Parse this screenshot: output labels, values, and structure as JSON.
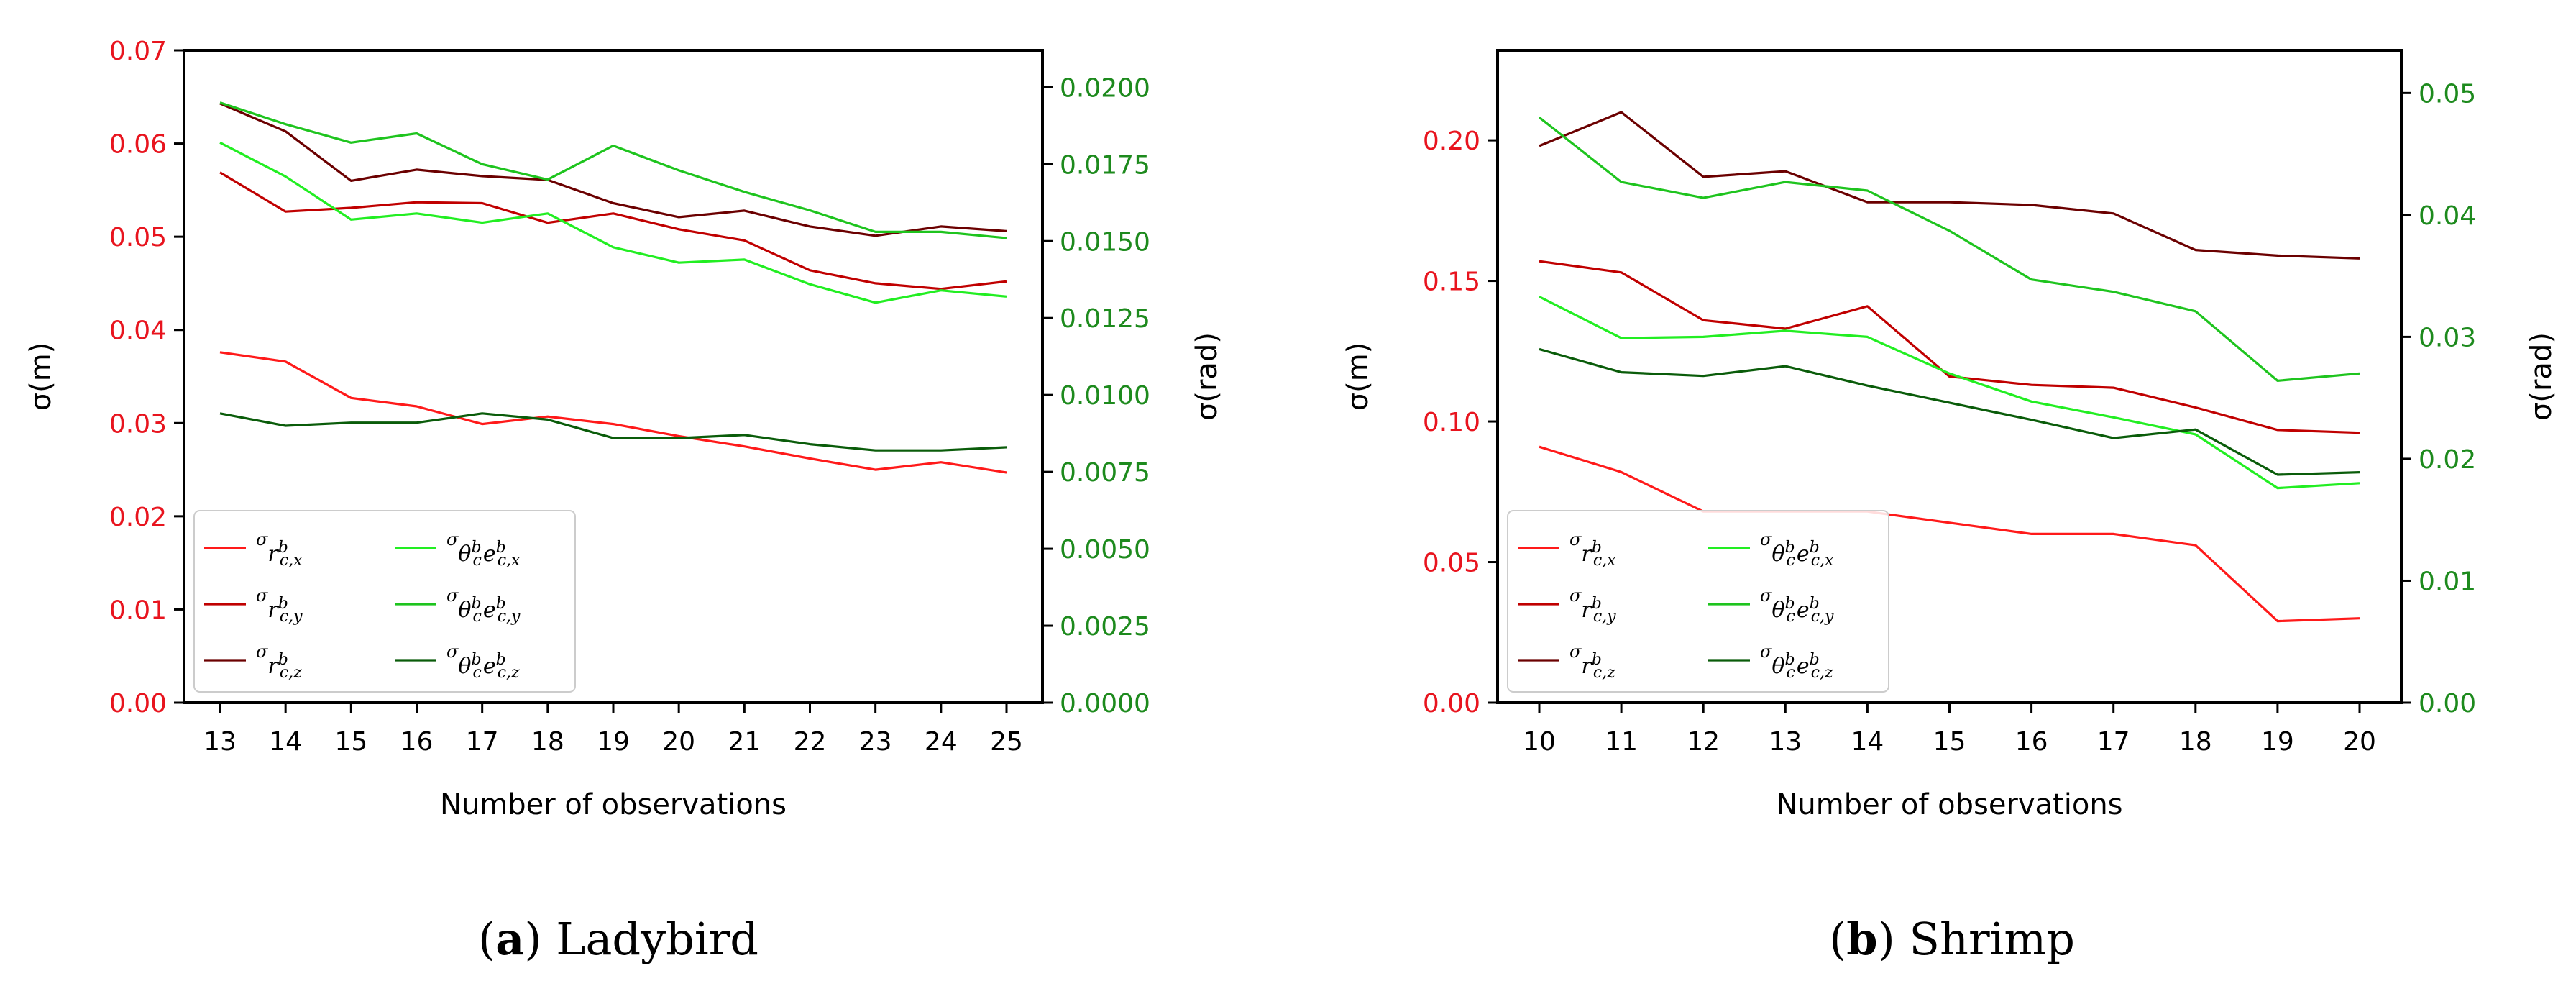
{
  "figure": {
    "colors": {
      "left_axis": "#e8141e",
      "right_axis": "#1d8a1d"
    },
    "subfigures": [
      {
        "label": "a",
        "name": "Ladybird"
      },
      {
        "label": "b",
        "name": "Shrimp"
      }
    ]
  },
  "chart_data": [
    {
      "type": "line",
      "panel": "(a) Ladybird",
      "xlabel": "Number of observations",
      "ylabel_left": "σ(m)",
      "ylabel_right": "σ(rad)",
      "x": [
        13,
        14,
        15,
        16,
        17,
        18,
        19,
        20,
        21,
        22,
        23,
        24,
        25
      ],
      "x_ticks": [
        "13",
        "14",
        "15",
        "16",
        "17",
        "18",
        "19",
        "20",
        "21",
        "22",
        "23",
        "24",
        "25"
      ],
      "ylim_left": [
        0,
        0.07
      ],
      "yticks_left": [
        "0.00",
        "0.01",
        "0.02",
        "0.03",
        "0.04",
        "0.05",
        "0.06",
        "0.07"
      ],
      "ylim_right": [
        0,
        0.0212
      ],
      "yticks_right": [
        "0.0000",
        "0.0025",
        "0.0050",
        "0.0075",
        "0.0100",
        "0.0125",
        "0.0150",
        "0.0175",
        "0.0200"
      ],
      "legend_placement": "bottom-left",
      "series": [
        {
          "name": "σ r^b_{c,x}",
          "axis": "left",
          "color": "#ff1a1a",
          "legend": {
            "base": "σ",
            "sub": "r",
            "sup": "b",
            "subsub": "c,x"
          },
          "values": [
            0.0376,
            0.0366,
            0.0327,
            0.0318,
            0.0299,
            0.0307,
            0.0299,
            0.0286,
            0.0275,
            0.0262,
            0.025,
            0.0258,
            0.0247
          ]
        },
        {
          "name": "σ r^b_{c,y}",
          "axis": "left",
          "color": "#c00000",
          "legend": {
            "base": "σ",
            "sub": "r",
            "sup": "b",
            "subsub": "c,y"
          },
          "values": [
            0.0569,
            0.0527,
            0.0531,
            0.0537,
            0.0536,
            0.0515,
            0.0525,
            0.0508,
            0.0496,
            0.0464,
            0.045,
            0.0444,
            0.0452
          ]
        },
        {
          "name": "σ r^b_{c,z}",
          "axis": "left",
          "color": "#6b0000",
          "legend": {
            "base": "σ",
            "sub": "r",
            "sup": "b",
            "subsub": "c,z"
          },
          "values": [
            0.0643,
            0.0613,
            0.056,
            0.0572,
            0.0565,
            0.0561,
            0.0536,
            0.0521,
            0.0528,
            0.0511,
            0.0501,
            0.0511,
            0.0506
          ]
        },
        {
          "name": "σ θ^b_c e^b_{c,x}",
          "axis": "right",
          "color": "#22ee22",
          "legend": {
            "base": "σ",
            "sub": "θ",
            "sup": "b",
            "subsub": "c",
            "tail": "e",
            "tailsup": "b",
            "tailsub": "c,x"
          },
          "values": [
            0.0182,
            0.0171,
            0.0157,
            0.0159,
            0.0156,
            0.0159,
            0.0148,
            0.0143,
            0.0144,
            0.0136,
            0.013,
            0.0134,
            0.0132
          ]
        },
        {
          "name": "σ θ^b_c e^b_{c,y}",
          "axis": "right",
          "color": "#1ec41e",
          "legend": {
            "base": "σ",
            "sub": "θ",
            "sup": "b",
            "subsub": "c",
            "tail": "e",
            "tailsup": "b",
            "tailsub": "c,y"
          },
          "values": [
            0.0195,
            0.0188,
            0.0182,
            0.0185,
            0.0175,
            0.017,
            0.0181,
            0.0173,
            0.0166,
            0.016,
            0.0153,
            0.0153,
            0.0151
          ]
        },
        {
          "name": "σ θ^b_c e^b_{c,z}",
          "axis": "right",
          "color": "#0a5c0a",
          "legend": {
            "base": "σ",
            "sub": "θ",
            "sup": "b",
            "subsub": "c",
            "tail": "e",
            "tailsup": "b",
            "tailsub": "c,z"
          },
          "values": [
            0.0094,
            0.009,
            0.0091,
            0.0091,
            0.0094,
            0.0092,
            0.0086,
            0.0086,
            0.0087,
            0.0084,
            0.0082,
            0.0082,
            0.0083
          ]
        }
      ]
    },
    {
      "type": "line",
      "panel": "(b) Shrimp",
      "xlabel": "Number of observations",
      "ylabel_left": "σ(m)",
      "ylabel_right": "σ(rad)",
      "x": [
        10,
        11,
        12,
        13,
        14,
        15,
        16,
        17,
        18,
        19,
        20
      ],
      "x_ticks": [
        "10",
        "11",
        "12",
        "13",
        "14",
        "15",
        "16",
        "17",
        "18",
        "19",
        "20"
      ],
      "ylim_left": [
        0,
        0.232
      ],
      "yticks_left": [
        "0.00",
        "0.05",
        "0.10",
        "0.15",
        "0.20"
      ],
      "ylim_right": [
        0,
        0.0535
      ],
      "yticks_right": [
        "0.00",
        "0.01",
        "0.02",
        "0.03",
        "0.04",
        "0.05"
      ],
      "legend_placement": "bottom-left",
      "series": [
        {
          "name": "σ r^b_{c,x}",
          "axis": "left",
          "color": "#ff1a1a",
          "legend": {
            "base": "σ",
            "sub": "r",
            "sup": "b",
            "subsub": "c,x"
          },
          "values": [
            0.091,
            0.082,
            0.068,
            0.068,
            0.068,
            0.064,
            0.06,
            0.06,
            0.056,
            0.029,
            0.03
          ]
        },
        {
          "name": "σ r^b_{c,y}",
          "axis": "left",
          "color": "#c00000",
          "legend": {
            "base": "σ",
            "sub": "r",
            "sup": "b",
            "subsub": "c,y"
          },
          "values": [
            0.157,
            0.153,
            0.136,
            0.133,
            0.141,
            0.116,
            0.113,
            0.112,
            0.105,
            0.097,
            0.096
          ]
        },
        {
          "name": "σ r^b_{c,z}",
          "axis": "left",
          "color": "#6b0000",
          "legend": {
            "base": "σ",
            "sub": "r",
            "sup": "b",
            "subsub": "c,z"
          },
          "values": [
            0.198,
            0.21,
            0.187,
            0.189,
            0.178,
            0.178,
            0.177,
            0.174,
            0.161,
            0.159,
            0.158
          ]
        },
        {
          "name": "σ θ^b_c e^b_{c,x}",
          "axis": "right",
          "color": "#22ee22",
          "legend": {
            "base": "σ",
            "sub": "θ",
            "sup": "b",
            "subsub": "c",
            "tail": "e",
            "tailsup": "b",
            "tailsub": "c,x"
          },
          "values": [
            0.0333,
            0.0299,
            0.03,
            0.0305,
            0.03,
            0.027,
            0.0247,
            0.0234,
            0.022,
            0.0176,
            0.018
          ]
        },
        {
          "name": "σ θ^b_c e^b_{c,y}",
          "axis": "right",
          "color": "#1ec41e",
          "legend": {
            "base": "σ",
            "sub": "θ",
            "sup": "b",
            "subsub": "c",
            "tail": "e",
            "tailsup": "b",
            "tailsub": "c,y"
          },
          "values": [
            0.048,
            0.0427,
            0.0414,
            0.0427,
            0.042,
            0.0387,
            0.0347,
            0.0337,
            0.0321,
            0.0264,
            0.027
          ]
        },
        {
          "name": "σ θ^b_c e^b_{c,z}",
          "axis": "right",
          "color": "#0a5c0a",
          "legend": {
            "base": "σ",
            "sub": "θ",
            "sup": "b",
            "subsub": "c",
            "tail": "e",
            "tailsup": "b",
            "tailsub": "c,z"
          },
          "values": [
            0.029,
            0.0271,
            0.0268,
            0.0276,
            0.026,
            0.0246,
            0.0232,
            0.0217,
            0.0224,
            0.0187,
            0.0189
          ]
        }
      ]
    }
  ]
}
